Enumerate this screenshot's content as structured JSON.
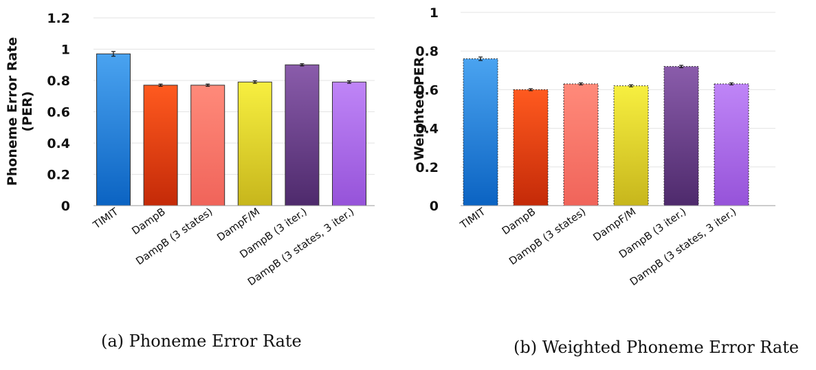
{
  "figure": {
    "caption_a": "(a) Phoneme Error Rate",
    "caption_b": "(b) Weighted Phoneme Error Rate"
  },
  "chart_data": [
    {
      "id": "a",
      "type": "bar",
      "ylabel": "Phoneme Error Rate (PER)",
      "ylabel_lines": [
        "Phoneme Error Rate",
        "(PER)"
      ],
      "ylim": [
        0,
        1.2
      ],
      "yticks": [
        0,
        0.2,
        0.4,
        0.6,
        0.8,
        1,
        1.2
      ],
      "grid": true,
      "categories": [
        "TIMIT",
        "DampB",
        "DampB (3 states)",
        "DampF/M",
        "DampB (3 iter.)",
        "DampB (3 states, 3 iter.)"
      ],
      "values": [
        0.97,
        0.77,
        0.77,
        0.79,
        0.9,
        0.79
      ],
      "errors": [
        0.015,
        0.007,
        0.007,
        0.008,
        0.007,
        0.008
      ],
      "bar_colors": [
        [
          "#4aa3f0",
          "#0b63c2"
        ],
        [
          "#ff5a1f",
          "#c42a08"
        ],
        [
          "#ff8a7a",
          "#f0645a"
        ],
        [
          "#f7ef40",
          "#c7b61c"
        ],
        [
          "#8a5cab",
          "#4e2a6c"
        ],
        [
          "#bf85f7",
          "#9653d9"
        ]
      ],
      "dashed_border": false
    },
    {
      "id": "b",
      "type": "bar",
      "ylabel": "Weighted PER",
      "ylabel_lines": [
        "Weighted PER"
      ],
      "ylim": [
        0,
        1
      ],
      "yticks": [
        0,
        0.2,
        0.4,
        0.6,
        0.8,
        1
      ],
      "grid": true,
      "categories": [
        "TIMIT",
        "DampB",
        "DampB (3 states)",
        "DampF/M",
        "DampB (3 iter.)",
        "DampB (3 states, 3 iter.)"
      ],
      "values": [
        0.76,
        0.6,
        0.63,
        0.62,
        0.72,
        0.63
      ],
      "errors": [
        0.009,
        0.005,
        0.005,
        0.005,
        0.006,
        0.005
      ],
      "bar_colors": [
        [
          "#4aa3f0",
          "#0b63c2"
        ],
        [
          "#ff5a1f",
          "#c42a08"
        ],
        [
          "#ff8a7a",
          "#f0645a"
        ],
        [
          "#f7ef40",
          "#c7b61c"
        ],
        [
          "#8a5cab",
          "#4e2a6c"
        ],
        [
          "#bf85f7",
          "#9653d9"
        ]
      ],
      "dashed_border": true
    }
  ]
}
